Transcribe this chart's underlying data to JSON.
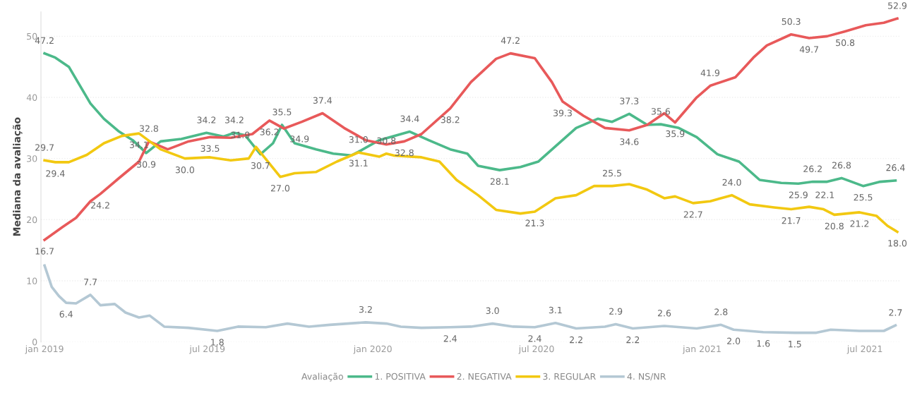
{
  "chart_data": {
    "type": "line",
    "ylabel": "Mediana da avaliação",
    "legend_title": "Avaliação",
    "legend": "bottom",
    "grid": "y",
    "marker": "none",
    "line_style": "solid",
    "ylim": [
      0,
      54
    ],
    "yticks": [
      0,
      10,
      20,
      30,
      40,
      50
    ],
    "xlim": [
      "2018-12-28",
      "2021-08-10"
    ],
    "xticks": [
      {
        "value": "2019-01-01",
        "label": "jan 2019"
      },
      {
        "value": "2019-07-01",
        "label": "jul 2019"
      },
      {
        "value": "2020-01-01",
        "label": "jan 2020"
      },
      {
        "value": "2020-07-01",
        "label": "jul 2020"
      },
      {
        "value": "2021-01-01",
        "label": "jan 2021"
      },
      {
        "value": "2021-07-01",
        "label": "jul 2021"
      }
    ],
    "series": [
      {
        "name": "1. POSITIVA",
        "color": "#4cb98a",
        "x": [
          "2019-01-01",
          "2019-01-13",
          "2019-01-28",
          "2019-02-09",
          "2019-02-21",
          "2019-03-08",
          "2019-03-24",
          "2019-04-09",
          "2019-04-24",
          "2019-05-10",
          "2019-06-02",
          "2019-06-30",
          "2019-07-19",
          "2019-07-31",
          "2019-08-12",
          "2019-08-29",
          "2019-09-12",
          "2019-09-22",
          "2019-10-06",
          "2019-10-30",
          "2019-11-18",
          "2019-12-08",
          "2019-12-16",
          "2020-01-08",
          "2020-02-11",
          "2020-03-03",
          "2020-03-27",
          "2020-04-15",
          "2020-04-27",
          "2020-05-21",
          "2020-06-13",
          "2020-07-03",
          "2020-07-22",
          "2020-08-14",
          "2020-09-07",
          "2020-09-23",
          "2020-10-12",
          "2020-11-01",
          "2020-11-16",
          "2020-12-06",
          "2020-12-26",
          "2021-01-18",
          "2021-02-11",
          "2021-03-06",
          "2021-03-30",
          "2021-04-18",
          "2021-05-04",
          "2021-05-20",
          "2021-06-05",
          "2021-06-29",
          "2021-07-18",
          "2021-08-04"
        ],
        "values": [
          47.2,
          46.5,
          45.0,
          42,
          39,
          36.5,
          34.5,
          33.0,
          30.9,
          32.8,
          33.2,
          34.2,
          33.6,
          34.2,
          33.8,
          30.7,
          32.5,
          35.5,
          32.5,
          31.5,
          30.8,
          30.5,
          31.1,
          33.0,
          34.4,
          33.0,
          31.5,
          30.8,
          28.8,
          28.1,
          28.6,
          29.5,
          32,
          35,
          36.5,
          36,
          37.3,
          35.5,
          35.6,
          35,
          33.5,
          30.7,
          29.5,
          26.5,
          26.0,
          25.9,
          26.2,
          26.2,
          26.8,
          25.5,
          26.2,
          26.4
        ],
        "value_labels": [
          "47.2",
          null,
          null,
          null,
          null,
          null,
          null,
          null,
          "30.9",
          null,
          null,
          "34.2",
          null,
          "34.2",
          null,
          "30.7",
          null,
          "35.5",
          null,
          null,
          null,
          null,
          "31.1",
          null,
          "34.4",
          null,
          null,
          null,
          null,
          "28.1",
          null,
          null,
          null,
          null,
          null,
          null,
          "37.3",
          null,
          "35.6",
          null,
          null,
          null,
          null,
          null,
          null,
          "25.9",
          "26.2",
          null,
          "26.8",
          "25.5",
          null,
          "26.4"
        ]
      },
      {
        "name": "2. NEGATIVA",
        "color": "#e8595a",
        "x": [
          "2019-01-01",
          "2019-01-21",
          "2019-02-05",
          "2019-02-21",
          "2019-03-04",
          "2019-03-24",
          "2019-04-16",
          "2019-04-27",
          "2019-05-18",
          "2019-06-10",
          "2019-07-04",
          "2019-07-27",
          "2019-08-20",
          "2019-09-08",
          "2019-09-24",
          "2019-10-14",
          "2019-11-06",
          "2019-11-30",
          "2019-12-24",
          "2020-01-16",
          "2020-02-05",
          "2020-02-24",
          "2020-03-27",
          "2020-04-19",
          "2020-05-17",
          "2020-06-02",
          "2020-06-29",
          "2020-07-18",
          "2020-07-30",
          "2020-08-22",
          "2020-09-15",
          "2020-10-12",
          "2020-11-01",
          "2020-11-20",
          "2020-12-02",
          "2020-12-26",
          "2021-01-10",
          "2021-02-07",
          "2021-02-27",
          "2021-03-14",
          "2021-04-10",
          "2021-04-30",
          "2021-05-20",
          "2021-06-09",
          "2021-07-02",
          "2021-07-22",
          "2021-08-06"
        ],
        "values": [
          16.7,
          18.8,
          20.3,
          23,
          24.2,
          26.7,
          29.5,
          32.8,
          31.5,
          32.8,
          33.5,
          33.4,
          34.0,
          36.2,
          34.9,
          36.0,
          37.4,
          35.0,
          33.0,
          32.3,
          32.8,
          34,
          38.2,
          42.5,
          46.3,
          47.2,
          46.4,
          42.5,
          39.3,
          37.0,
          35.0,
          34.6,
          35.5,
          37.4,
          35.9,
          40.0,
          41.9,
          43.3,
          46.5,
          48.5,
          50.3,
          49.7,
          50.0,
          50.8,
          51.8,
          52.2,
          52.9
        ],
        "value_labels": [
          "16.7",
          null,
          null,
          null,
          "24.2",
          null,
          null,
          "32.8",
          null,
          null,
          "33.5",
          null,
          null,
          "36.2",
          "34.9",
          null,
          "37.4",
          null,
          null,
          null,
          "32.8",
          null,
          "38.2",
          null,
          null,
          "47.2",
          null,
          null,
          "39.3",
          null,
          null,
          "34.6",
          null,
          null,
          "35.9",
          null,
          "41.9",
          null,
          null,
          null,
          "50.3",
          "49.7",
          null,
          "50.8",
          null,
          null,
          "52.9"
        ]
      },
      {
        "name": "3. REGULAR",
        "color": "#f2c811",
        "x": [
          "2019-01-01",
          "2019-01-13",
          "2019-01-28",
          "2019-02-17",
          "2019-03-08",
          "2019-03-28",
          "2019-04-16",
          "2019-05-10",
          "2019-06-06",
          "2019-07-04",
          "2019-07-27",
          "2019-08-16",
          "2019-08-24",
          "2019-09-20",
          "2019-10-06",
          "2019-10-30",
          "2019-11-22",
          "2019-12-16",
          "2020-01-08",
          "2020-01-16",
          "2020-01-24",
          "2020-02-24",
          "2020-03-15",
          "2020-04-03",
          "2020-04-27",
          "2020-05-17",
          "2020-06-13",
          "2020-06-29",
          "2020-07-22",
          "2020-08-14",
          "2020-09-03",
          "2020-09-23",
          "2020-10-12",
          "2020-11-01",
          "2020-11-20",
          "2020-12-02",
          "2020-12-22",
          "2021-01-10",
          "2021-02-03",
          "2021-02-23",
          "2021-03-22",
          "2021-04-10",
          "2021-04-30",
          "2021-05-16",
          "2021-05-28",
          "2021-06-25",
          "2021-07-14",
          "2021-07-26",
          "2021-08-06"
        ],
        "values": [
          29.7,
          29.4,
          29.4,
          30.6,
          32.5,
          33.7,
          34.1,
          31.5,
          30.0,
          30.2,
          29.7,
          30.0,
          31.9,
          27.0,
          27.6,
          27.8,
          29.5,
          31.0,
          30.3,
          30.8,
          30.5,
          30.2,
          29.5,
          26.5,
          24,
          21.6,
          21.0,
          21.3,
          23.5,
          24.0,
          25.5,
          25.5,
          25.8,
          24.9,
          23.5,
          23.8,
          22.7,
          23.0,
          24.0,
          22.5,
          22.0,
          21.7,
          22.1,
          21.7,
          20.8,
          21.2,
          20.6,
          19.0,
          18.0
        ],
        "value_labels": [
          "29.7",
          "29.4",
          null,
          null,
          null,
          null,
          "34.1",
          null,
          "30.0",
          null,
          null,
          null,
          "31.9",
          "27.0",
          null,
          null,
          null,
          "31.0",
          null,
          "30.8",
          null,
          null,
          null,
          null,
          null,
          null,
          null,
          "21.3",
          null,
          null,
          null,
          "25.5",
          null,
          null,
          null,
          null,
          "22.7",
          null,
          "24.0",
          null,
          null,
          "21.7",
          "22.1",
          null,
          "20.8",
          "21.2",
          null,
          null,
          "18.0"
        ]
      },
      {
        "name": "4. NS/NR",
        "color": "#b4c8d4",
        "x": [
          "2019-01-01",
          "2019-01-09",
          "2019-01-17",
          "2019-01-25",
          "2019-02-05",
          "2019-02-21",
          "2019-03-04",
          "2019-03-20",
          "2019-04-01",
          "2019-04-16",
          "2019-04-28",
          "2019-05-14",
          "2019-06-10",
          "2019-07-12",
          "2019-08-04",
          "2019-09-04",
          "2019-09-28",
          "2019-10-22",
          "2019-11-14",
          "2019-12-24",
          "2020-01-16",
          "2020-02-01",
          "2020-02-24",
          "2020-03-27",
          "2020-04-19",
          "2020-05-13",
          "2020-06-05",
          "2020-06-29",
          "2020-07-22",
          "2020-08-14",
          "2020-09-15",
          "2020-09-27",
          "2020-10-16",
          "2020-11-20",
          "2020-12-26",
          "2021-01-22",
          "2021-02-05",
          "2021-03-10",
          "2021-04-14",
          "2021-05-08",
          "2021-05-24",
          "2021-06-25",
          "2021-07-22",
          "2021-08-04"
        ],
        "values": [
          12.5,
          9.0,
          7.5,
          6.4,
          6.3,
          7.7,
          6.0,
          6.2,
          4.8,
          4.0,
          4.3,
          2.5,
          2.3,
          1.8,
          2.5,
          2.4,
          3.0,
          2.5,
          2.8,
          3.2,
          3.0,
          2.5,
          2.3,
          2.4,
          2.5,
          3.0,
          2.5,
          2.4,
          3.1,
          2.2,
          2.5,
          2.9,
          2.2,
          2.6,
          2.2,
          2.8,
          2.0,
          1.6,
          1.5,
          1.5,
          2.0,
          1.8,
          1.8,
          2.7
        ],
        "value_labels": [
          null,
          null,
          null,
          "6.4",
          null,
          "7.7",
          null,
          null,
          null,
          null,
          null,
          null,
          null,
          "1.8",
          null,
          null,
          null,
          null,
          null,
          "3.2",
          null,
          null,
          null,
          "2.4",
          null,
          "3.0",
          null,
          "2.4",
          "3.1",
          "2.2",
          null,
          "2.9",
          "2.2",
          "2.6",
          null,
          "2.8",
          "2.0",
          "1.6",
          "1.5",
          null,
          null,
          null,
          null,
          "2.7"
        ]
      }
    ]
  }
}
